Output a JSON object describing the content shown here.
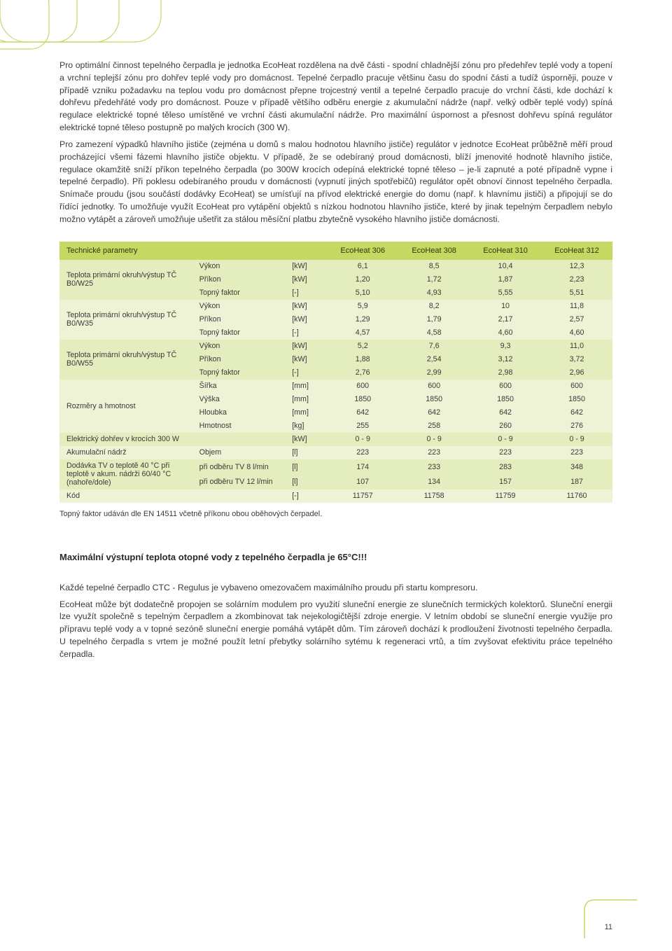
{
  "deco": {
    "stroke": "#c4d862",
    "width": 1.2
  },
  "paragraphs": {
    "p1": "Pro optimální činnost tepelného čerpadla je jednotka EcoHeat rozdělena na dvě části - spodní chladnější zónu pro předehřev teplé vody a topení a vrchní teplejší zónu pro dohřev teplé vody pro domácnost. Tepelné čerpadlo pracuje většinu času do spodní části a tudíž úsporněji, pouze v případě vzniku požadavku na teplou vodu pro domácnost přepne trojcestný ventil a tepelné čerpadlo pracuje do vrchní části, kde dochází k dohřevu předehřáté vody pro domácnost. Pouze v případě většího odběru energie z akumulační nádrže (např. velký odběr teplé vody) spíná regulace elektrické topné těleso umístěné ve vrchní části akumulační nádrže. Pro maximální úspornost a přesnost dohřevu spíná regulátor elektrické topné těleso postupně po malých krocích (300 W).",
    "p2": "Pro zamezení výpadků hlavního jističe (zejména u domů s malou hodnotou hlavního jističe) regulátor v jednotce EcoHeat průběžně měří proud procházející všemi fázemi hlavního jističe objektu. V případě, že se odebíraný proud domácnosti, blíží jmenovité hodnotě hlavního jističe, regulace okamžitě sníží příkon tepelného čerpadla (po 300W krocích odepíná elektrické topné těleso – je-li zapnuté a poté případně vypne i tepelné čerpadlo). Při poklesu odebíraného proudu v domácnosti (vypnutí jiných spotřebičů) regulátor opět obnoví činnost tepelného čerpadla. Snímače proudu (jsou součástí dodávky EcoHeat) se umísťují na přívod elektrické energie do domu (např. k hlavnímu jističi) a připojují se do řídící jednotky. To umožňuje využít EcoHeat pro vytápění objektů s nízkou hodnotou hlavního jističe, které by jinak tepelným čerpadlem nebylo možno vytápět a zároveň umožňuje ušetřit za stálou měsíční platbu zbytečně vysokého hlavního jističe domácnosti."
  },
  "table": {
    "header_bg": "#c4d862",
    "row_alt_colors": [
      "#e4edbd",
      "#eef3d6"
    ],
    "header_left": "Technické parametry",
    "models": [
      "EcoHeat 306",
      "EcoHeat 308",
      "EcoHeat 310",
      "EcoHeat 312"
    ],
    "groups": [
      {
        "label": "Teplota primární okruh/výstup TČ B0/W25",
        "rows": [
          {
            "name": "Výkon",
            "unit": "[kW]",
            "vals": [
              "6,1",
              "8,5",
              "10,4",
              "12,3"
            ]
          },
          {
            "name": "Příkon",
            "unit": "[kW]",
            "vals": [
              "1,20",
              "1,72",
              "1,87",
              "2,23"
            ]
          },
          {
            "name": "Topný faktor",
            "unit": "[-]",
            "vals": [
              "5,10",
              "4,93",
              "5,55",
              "5,51"
            ]
          }
        ]
      },
      {
        "label": "Teplota primární okruh/výstup TČ B0/W35",
        "rows": [
          {
            "name": "Výkon",
            "unit": "[kW]",
            "vals": [
              "5,9",
              "8,2",
              "10",
              "11,8"
            ]
          },
          {
            "name": "Příkon",
            "unit": "[kW]",
            "vals": [
              "1,29",
              "1,79",
              "2,17",
              "2,57"
            ]
          },
          {
            "name": "Topný faktor",
            "unit": "[-]",
            "vals": [
              "4,57",
              "4,58",
              "4,60",
              "4,60"
            ]
          }
        ]
      },
      {
        "label": "Teplota primární okruh/výstup TČ B0/W55",
        "rows": [
          {
            "name": "Výkon",
            "unit": "[kW]",
            "vals": [
              "5,2",
              "7,6",
              "9,3",
              "11,0"
            ]
          },
          {
            "name": "Příkon",
            "unit": "[kW]",
            "vals": [
              "1,88",
              "2,54",
              "3,12",
              "3,72"
            ]
          },
          {
            "name": "Topný faktor",
            "unit": "[-]",
            "vals": [
              "2,76",
              "2,99",
              "2,98",
              "2,96"
            ]
          }
        ]
      },
      {
        "label": "Rozměry a hmotnost",
        "rows": [
          {
            "name": "Šířka",
            "unit": "[mm]",
            "vals": [
              "600",
              "600",
              "600",
              "600"
            ]
          },
          {
            "name": "Výška",
            "unit": "[mm]",
            "vals": [
              "1850",
              "1850",
              "1850",
              "1850"
            ]
          },
          {
            "name": "Hloubka",
            "unit": "[mm]",
            "vals": [
              "642",
              "642",
              "642",
              "642"
            ]
          },
          {
            "name": "Hmotnost",
            "unit": "[kg]",
            "vals": [
              "255",
              "258",
              "260",
              "276"
            ]
          }
        ]
      },
      {
        "label": "Elektrický dohřev v krocích 300 W",
        "rows": [
          {
            "name": "",
            "unit": "[kW]",
            "vals": [
              "0 - 9",
              "0 - 9",
              "0 - 9",
              "0 - 9"
            ]
          }
        ]
      },
      {
        "label": "Akumulační nádrž",
        "rows": [
          {
            "name": "Objem",
            "unit": "[l]",
            "vals": [
              "223",
              "223",
              "223",
              "223"
            ]
          }
        ]
      },
      {
        "label": "Dodávka TV o teplotě 40 °C při teplotě v akum. nádrži 60/40 °C (nahoře/dole)",
        "rows": [
          {
            "name": "při odběru TV 8 l/min",
            "unit": "[l]",
            "vals": [
              "174",
              "233",
              "283",
              "348"
            ]
          },
          {
            "name": "při odběru TV 12 l/min",
            "unit": "[l]",
            "vals": [
              "107",
              "134",
              "157",
              "187"
            ]
          }
        ]
      },
      {
        "label": "Kód",
        "rows": [
          {
            "name": "",
            "unit": "[-]",
            "vals": [
              "11757",
              "11758",
              "11759",
              "11760"
            ]
          }
        ]
      }
    ]
  },
  "footnote": "Topný faktor udáván dle EN 14511 včetně příkonu obou oběhových čerpadel.",
  "heading": "Maximální výstupní teplota otopné vody z tepelného čerpadla je 65°C!!!",
  "p3": "Každé tepelné čerpadlo CTC - Regulus je vybaveno omezovačem maximálního proudu při startu kompresoru.",
  "p4": "EcoHeat může být dodatečně propojen se solárním modulem pro využití sluneční energie ze slunečních termických kolektorů. Sluneční energii lze využít společně s tepelným čerpadlem a zkombinovat tak nejekologičtější zdroje energie. V letním období se sluneční energie využije pro přípravu teplé vody a v topné sezóně sluneční energie pomáhá vytápět dům. Tím zároveň dochází k prodloužení životnosti tepelného čerpadla. U tepelného čerpadla s vrtem je možné použít letní přebytky solárního sytému k regeneraci vrtů, a tím zvyšovat efektivitu práce tepelného čerpadla.",
  "page_number": "11"
}
